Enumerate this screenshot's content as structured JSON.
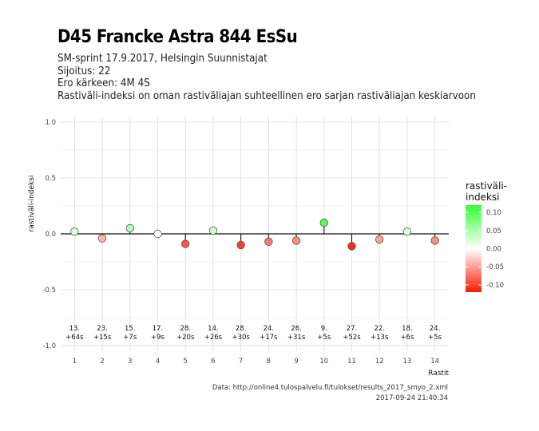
{
  "title": "D45 Francke Astra 844 EsSu",
  "subtitle_lines": [
    "SM-sprint 17.9.2017, Helsingin Suunnistajat",
    "Sijoitus: 22",
    "Ero kärkeen: 4M 4S",
    "Rastiväli-indeksi on oman rastiväliajan suhteellinen ero sarjan rastiväliajan keskiarvoon"
  ],
  "caption_lines": [
    "Data: http://online4.tulospalvelu.fi/tulokset/results_2017_smyo_2.xml",
    "2017-09-24 21:40:34"
  ],
  "chart_data": {
    "type": "scatter",
    "xlabel": "Rastit",
    "ylabel": "rastiväli-indeksi",
    "ylim": [
      -1.05,
      1.05
    ],
    "yticks": [
      -1.0,
      -0.5,
      0.0,
      0.5,
      1.0
    ],
    "ytick_labels": [
      "-1.0",
      "-0.5",
      "0.0",
      "0.5",
      "1.0"
    ],
    "x": [
      1,
      2,
      3,
      4,
      5,
      6,
      7,
      8,
      9,
      10,
      11,
      12,
      13,
      14
    ],
    "xtick_labels": [
      "1",
      "2",
      "3",
      "4",
      "5",
      "6",
      "7",
      "8",
      "9",
      "10",
      "11",
      "12",
      "13",
      "14"
    ],
    "values": [
      0.02,
      -0.04,
      0.05,
      0.0,
      -0.09,
      0.03,
      -0.1,
      -0.07,
      -0.06,
      0.1,
      -0.11,
      -0.05,
      0.02,
      -0.06
    ],
    "label_line1": [
      "13.",
      "23.",
      "15.",
      "17.",
      "28.",
      "14.",
      "28.",
      "24.",
      "26.",
      "9.",
      "27.",
      "22.",
      "18.",
      "24."
    ],
    "label_line2": [
      "+64s",
      "+15s",
      "+7s",
      "+9s",
      "+20s",
      "+26s",
      "+30s",
      "+17s",
      "+31s",
      "+5s",
      "+52s",
      "+13s",
      "+6s",
      "+5s"
    ],
    "legend": {
      "title_lines": [
        "rastiväli-",
        "indeksi"
      ],
      "ticks": [
        0.1,
        0.05,
        0.0,
        -0.05,
        -0.1
      ],
      "tick_labels": [
        "0.10",
        "0.05",
        "0.00",
        "-0.05",
        "-0.10"
      ],
      "range": [
        -0.12,
        0.12
      ],
      "color_high": "#33ff33",
      "color_mid": "#ffffff",
      "color_low": "#ff1a00"
    },
    "grid": true,
    "zero_line": true
  }
}
